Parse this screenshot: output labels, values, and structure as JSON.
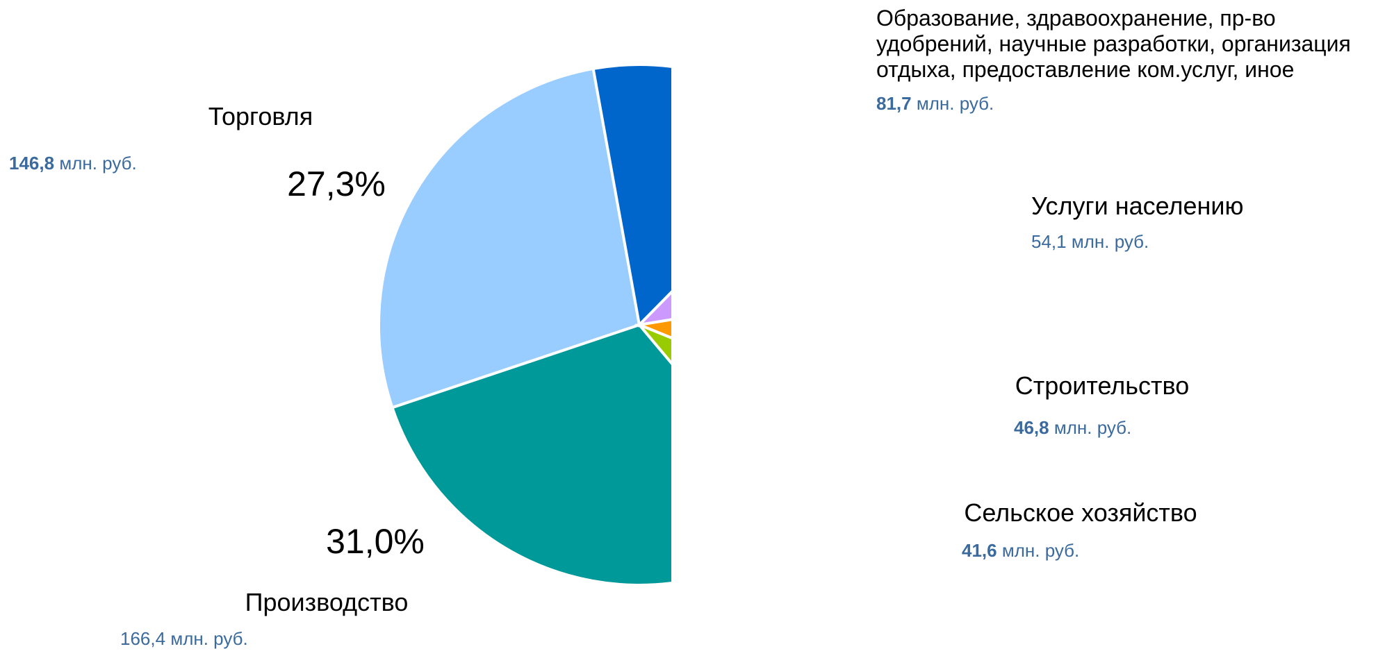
{
  "chart_data": {
    "type": "pie",
    "categories": [
      "Производство",
      "Торговля",
      "Образование, здравоохранение, пр-во удобрений, научные разработки, организация отдыха, предоставление ком.услуг, иное",
      "Услуги населению",
      "Строительство",
      "Сельское хозяйство"
    ],
    "values": [
      166.4,
      146.8,
      81.7,
      54.1,
      46.8,
      41.6
    ],
    "value_labels": [
      "166,4",
      "146,8",
      "81,7",
      "54,1",
      "46,8",
      "41,6"
    ],
    "value_labels_bold": [
      false,
      true,
      true,
      false,
      true,
      true
    ],
    "unit": "млн. руб.",
    "percent_labels": [
      {
        "value": 31.0,
        "label": "31,0%"
      },
      {
        "value": 27.3,
        "label": "27,3%"
      }
    ],
    "colors": [
      "#009999",
      "#99ccff",
      "#0066cc",
      "#cc99ff",
      "#ff9900",
      "#99cc00"
    ]
  }
}
